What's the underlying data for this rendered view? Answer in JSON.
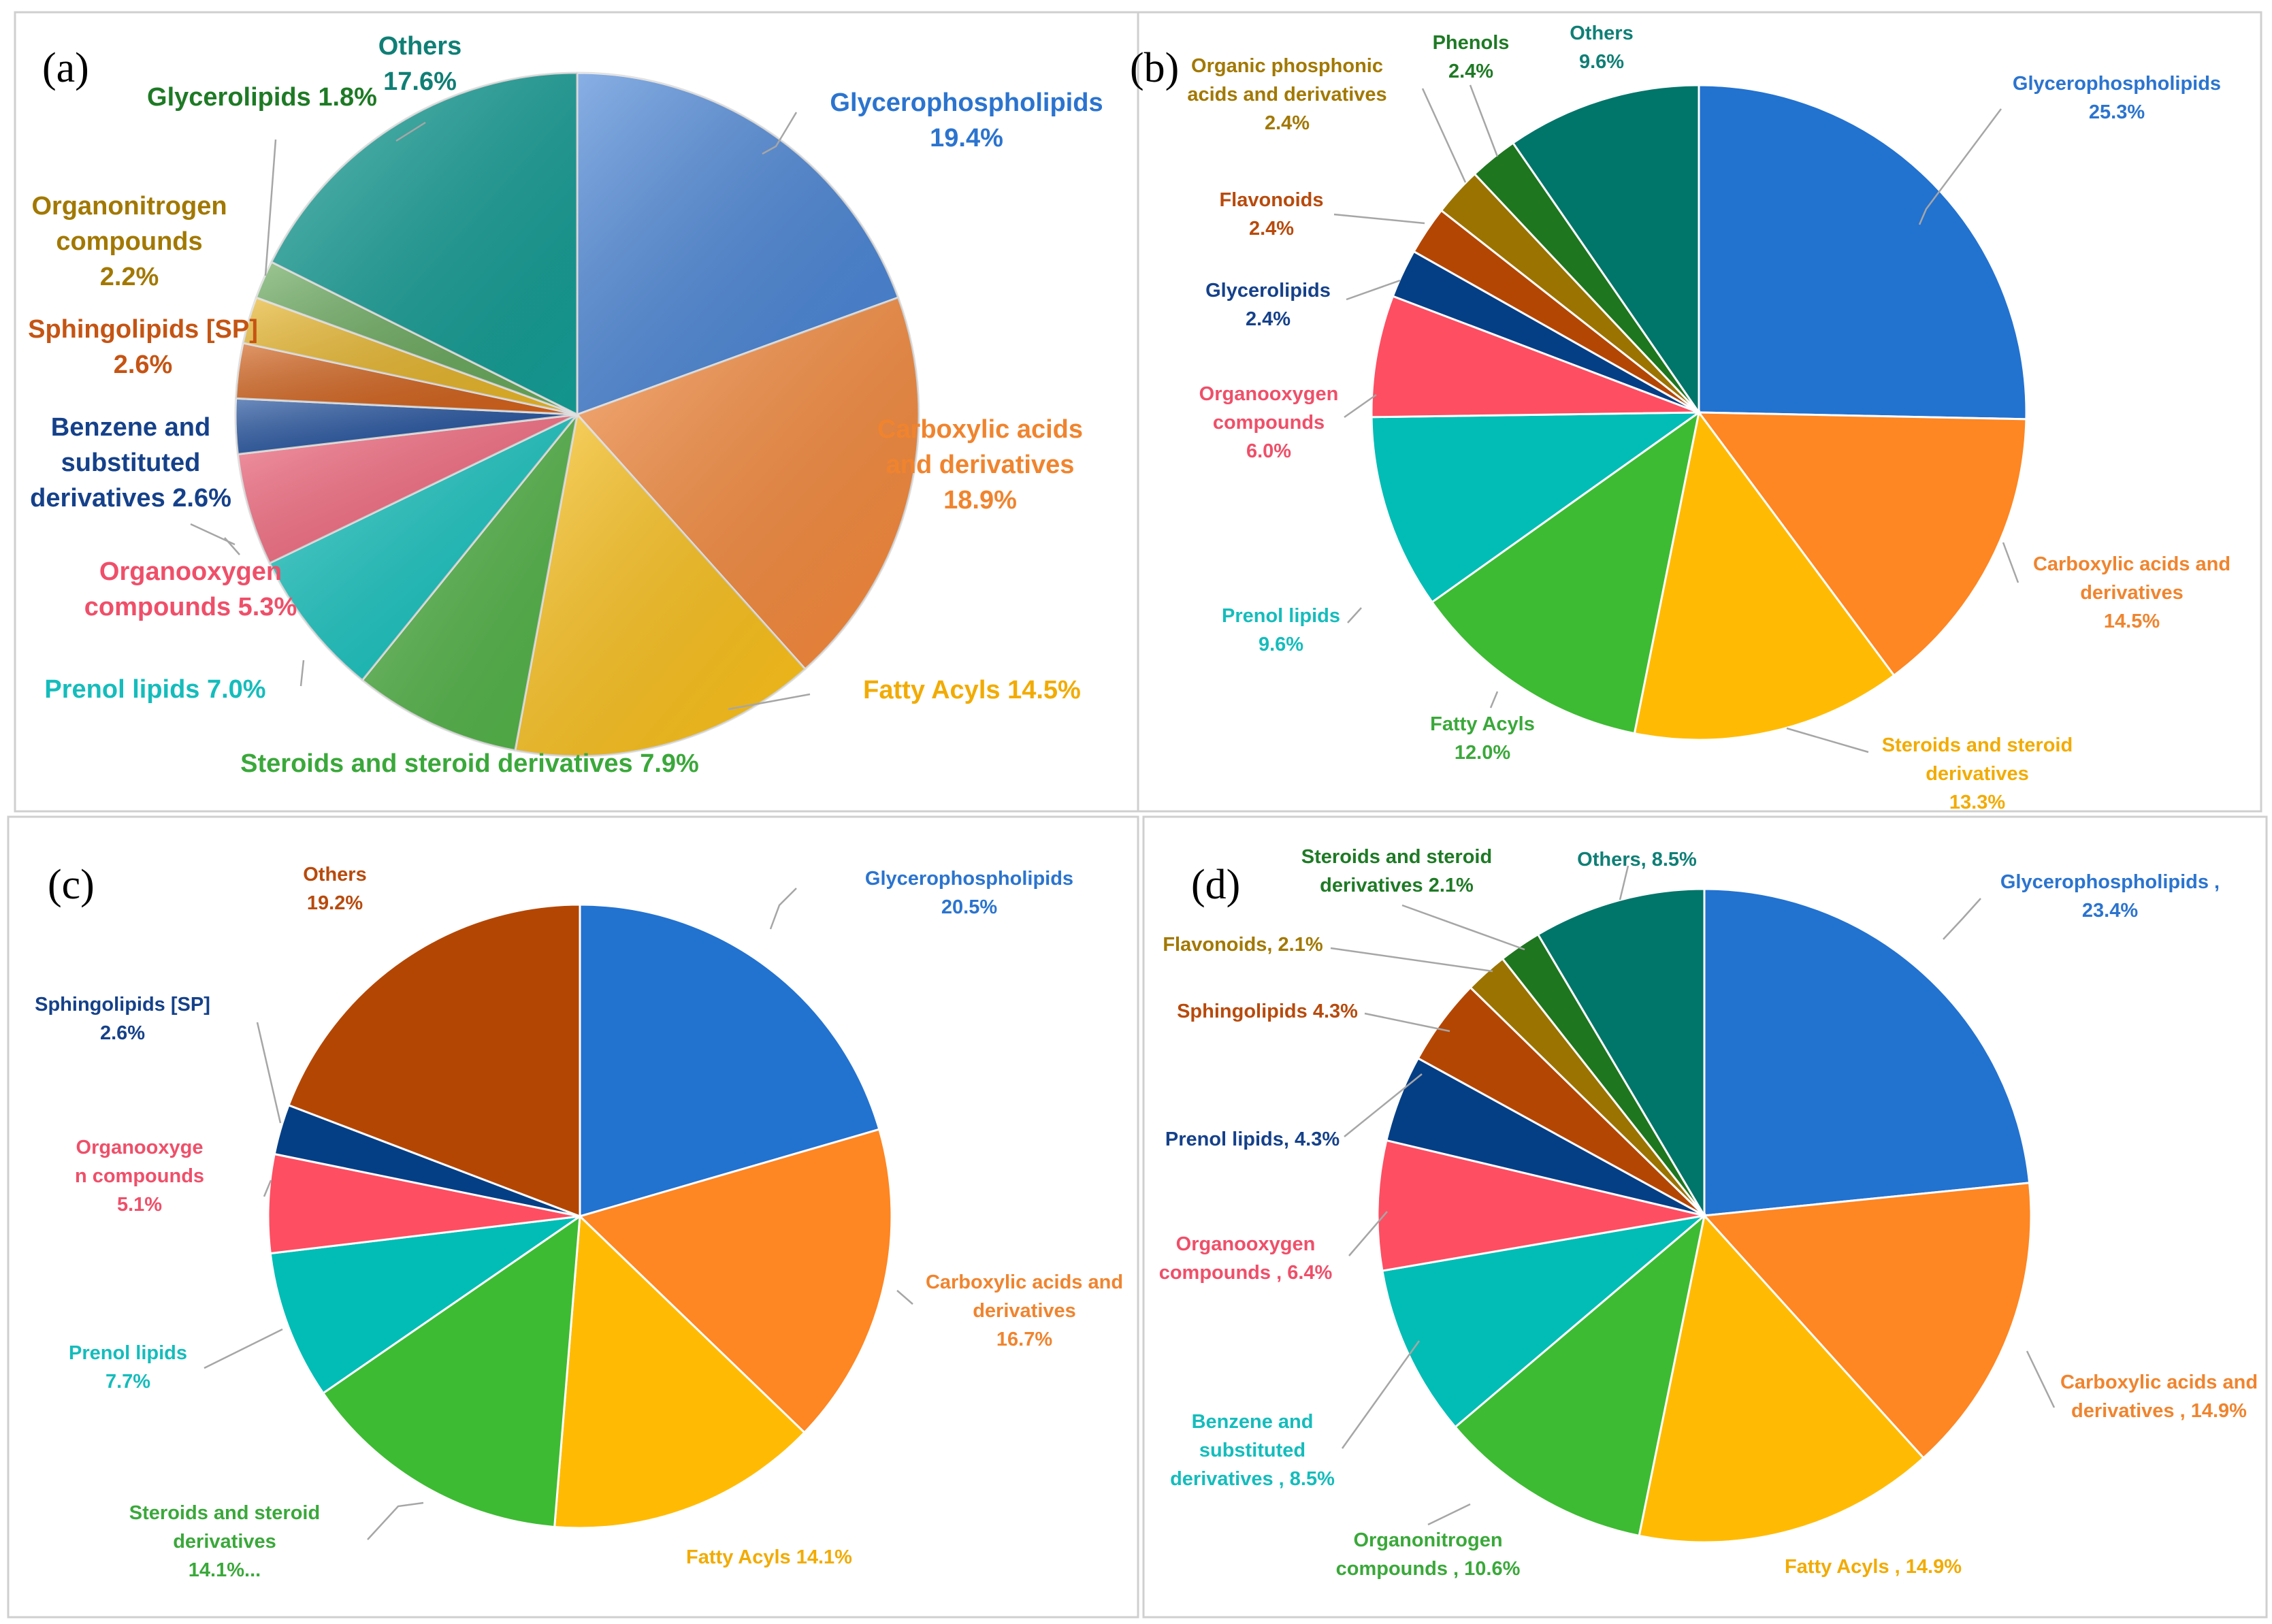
{
  "chart_data": [
    {
      "type": "pie",
      "panel": "(a)",
      "slices": [
        {
          "name": "Glycerophospholipids",
          "value": 19.4,
          "label": [
            "Glycerophospholipids",
            "19.4%"
          ],
          "color": "#4a86d8"
        },
        {
          "name": "Carboxylic acids and derivatives",
          "value": 18.9,
          "label": [
            "Carboxylic acids",
            "and derivatives",
            "18.9%"
          ],
          "color": "#f78a3c"
        },
        {
          "name": "Fatty Acyls",
          "value": 14.5,
          "label": [
            "Fatty Acyls 14.5%"
          ],
          "color": "#fdc21a"
        },
        {
          "name": "Steroids and steroid derivatives",
          "value": 7.9,
          "label": [
            "Steroids and steroid derivatives 7.9%"
          ],
          "color": "#52b447"
        },
        {
          "name": "Prenol lipids",
          "value": 7.0,
          "label": [
            "Prenol lipids 7.0%"
          ],
          "color": "#14c4c0"
        },
        {
          "name": "Organooxygen compounds",
          "value": 5.3,
          "label": [
            "Organooxygen",
            "compounds 5.3%"
          ],
          "color": "#f4687e"
        },
        {
          "name": "Benzene and substituted derivatives",
          "value": 2.6,
          "label": [
            "Benzene and",
            "substituted",
            "derivatives 2.6%"
          ],
          "color": "#1f4f9c"
        },
        {
          "name": "Sphingolipids [SP]",
          "value": 2.6,
          "label": [
            "Sphingolipids [SP]",
            "2.6%"
          ],
          "color": "#d2611a"
        },
        {
          "name": "Organonitrogen compounds",
          "value": 2.2,
          "label": [
            "Organonitrogen",
            "compounds",
            "2.2%"
          ],
          "color": "#e7b427"
        },
        {
          "name": "Glycerolipids",
          "value": 1.8,
          "label": [
            "Glycerolipids 1.8%"
          ],
          "color": "#67a85a"
        },
        {
          "name": "Others",
          "value": 17.6,
          "label": [
            "Others",
            "17.6%"
          ],
          "color": "#139d95"
        }
      ]
    },
    {
      "type": "pie",
      "panel": "(b)",
      "slices": [
        {
          "name": "Glycerophospholipids",
          "value": 25.3,
          "label": [
            "Glycerophospholipids",
            "25.3%"
          ],
          "color": "#2272d0"
        },
        {
          "name": "Carboxylic acids and derivatives",
          "value": 14.5,
          "label": [
            "Carboxylic acids and",
            "derivatives",
            "14.5%"
          ],
          "color": "#fe8623"
        },
        {
          "name": "Steroids and steroid derivatives",
          "value": 13.3,
          "label": [
            "Steroids and steroid",
            "derivatives",
            "13.3%"
          ],
          "color": "#ffbb04"
        },
        {
          "name": "Fatty Acyls",
          "value": 12.0,
          "label": [
            "Fatty Acyls",
            "12.0%"
          ],
          "color": "#3dbb33"
        },
        {
          "name": "Prenol lipids",
          "value": 9.6,
          "label": [
            "Prenol lipids",
            "9.6%"
          ],
          "color": "#01bdb5"
        },
        {
          "name": "Organooxygen compounds",
          "value": 6.0,
          "label": [
            "Organooxygen",
            "compounds",
            "6.0%"
          ],
          "color": "#fe4e62"
        },
        {
          "name": "Glycerolipids",
          "value": 2.4,
          "label": [
            "Glycerolipids",
            "2.4%"
          ],
          "color": "#043f86"
        },
        {
          "name": "Flavonoids",
          "value": 2.4,
          "label": [
            "Flavonoids",
            "2.4%"
          ],
          "color": "#b44604"
        },
        {
          "name": "Organic phosphonic acids and derivatives",
          "value": 2.4,
          "label": [
            "Organic phosphonic",
            "acids and derivatives",
            "2.4%"
          ],
          "color": "#9b7300"
        },
        {
          "name": "Phenols",
          "value": 2.4,
          "label": [
            "Phenols",
            "2.4%"
          ],
          "color": "#1e761f"
        },
        {
          "name": "Others",
          "value": 9.6,
          "label": [
            "Others",
            "9.6%"
          ],
          "color": "#00756a"
        }
      ]
    },
    {
      "type": "pie",
      "panel": "(c)",
      "slices": [
        {
          "name": "Glycerophospholipids",
          "value": 20.5,
          "label": [
            "Glycerophospholipids",
            "20.5%"
          ],
          "color": "#2272d0"
        },
        {
          "name": "Carboxylic acids and derivatives",
          "value": 16.7,
          "label": [
            "Carboxylic acids and",
            "derivatives",
            "16.7%"
          ],
          "color": "#fe8623"
        },
        {
          "name": "Fatty Acyls",
          "value": 14.1,
          "label": [
            "Fatty Acyls  14.1%"
          ],
          "color": "#ffbb04"
        },
        {
          "name": "Steroids and steroid derivatives",
          "value": 14.1,
          "label": [
            "Steroids and steroid",
            "derivatives",
            "14.1%..."
          ],
          "color": "#3dbb33"
        },
        {
          "name": "Prenol lipids",
          "value": 7.7,
          "label": [
            "Prenol lipids",
            "7.7%"
          ],
          "color": "#01bdb5"
        },
        {
          "name": "Organooxygen compounds",
          "value": 5.1,
          "label": [
            "Organooxyge",
            "n compounds",
            "5.1%"
          ],
          "color": "#fe4e62"
        },
        {
          "name": "Sphingolipids [SP]",
          "value": 2.6,
          "label": [
            "Sphingolipids [SP]",
            "2.6%"
          ],
          "color": "#043f86"
        },
        {
          "name": "Others",
          "value": 19.2,
          "label": [
            "Others",
            "19.2%"
          ],
          "color": "#b44604"
        }
      ]
    },
    {
      "type": "pie",
      "panel": "(d)",
      "slices": [
        {
          "name": "Glycerophospholipids",
          "value": 23.4,
          "label": [
            "Glycerophospholipids ,",
            "23.4%"
          ],
          "color": "#2272d0"
        },
        {
          "name": "Carboxylic acids and derivatives",
          "value": 14.9,
          "label": [
            "Carboxylic acids and",
            "derivatives , 14.9%"
          ],
          "color": "#fe8623"
        },
        {
          "name": "Fatty Acyls",
          "value": 14.9,
          "label": [
            "Fatty Acyls , 14.9%"
          ],
          "color": "#ffbb04"
        },
        {
          "name": "Organonitrogen compounds",
          "value": 10.6,
          "label": [
            "Organonitrogen",
            "compounds , 10.6%"
          ],
          "color": "#3dbb33"
        },
        {
          "name": "Benzene and substituted derivatives",
          "value": 8.5,
          "label": [
            "Benzene and",
            "substituted",
            "derivatives , 8.5%"
          ],
          "color": "#01bdb5"
        },
        {
          "name": "Organooxygen compounds",
          "value": 6.4,
          "label": [
            "Organooxygen",
            "compounds , 6.4%"
          ],
          "color": "#fe4e62"
        },
        {
          "name": "Prenol lipids",
          "value": 4.3,
          "label": [
            "Prenol lipids, 4.3%"
          ],
          "color": "#043f86"
        },
        {
          "name": "Sphingolipids",
          "value": 4.3,
          "label": [
            "Sphingolipids 4.3%"
          ],
          "color": "#b44604"
        },
        {
          "name": "Flavonoids",
          "value": 2.1,
          "label": [
            "Flavonoids, 2.1%"
          ],
          "color": "#9b7300"
        },
        {
          "name": "Steroids and steroid derivatives",
          "value": 2.1,
          "label": [
            "Steroids and steroid",
            "derivatives 2.1%"
          ],
          "color": "#1e761f"
        },
        {
          "name": "Others",
          "value": 8.5,
          "label": [
            "Others, 8.5%"
          ],
          "color": "#00756a"
        }
      ]
    }
  ],
  "label_colors": {
    "a": [
      "#2b74cf",
      "#f0842e",
      "#f2ab00",
      "#3aa83a",
      "#15bcbc",
      "#ef4f69",
      "#15418a",
      "#c55413",
      "#a27800",
      "#1e7a25",
      "#0f7f76"
    ],
    "b": [
      "#2b74cf",
      "#f0842e",
      "#f2ab00",
      "#3aa83a",
      "#15bcbc",
      "#ef4f69",
      "#15418a",
      "#b84a0c",
      "#a27800",
      "#1e7a25",
      "#0f7f76"
    ],
    "c": [
      "#2b74cf",
      "#f0842e",
      "#f2ab00",
      "#3aa83a",
      "#15bcbc",
      "#ef4f69",
      "#15418a",
      "#b84a0c"
    ],
    "d": [
      "#2b74cf",
      "#f0842e",
      "#f2ab00",
      "#3aa83a",
      "#15bcbc",
      "#ef4f69",
      "#15418a",
      "#b84a0c",
      "#a27800",
      "#1e7a25",
      "#0f7f76"
    ]
  }
}
